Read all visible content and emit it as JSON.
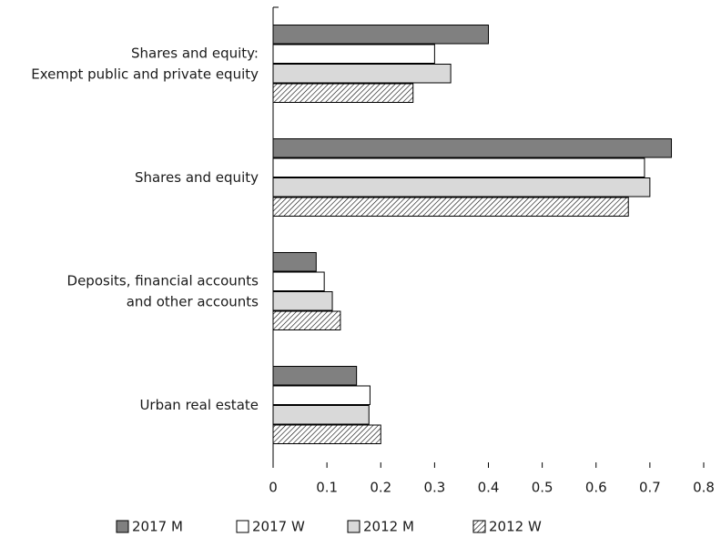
{
  "chart_data": {
    "type": "hbar",
    "categories": [
      [
        "Shares and equity:",
        "Exempt public and private equity"
      ],
      [
        "Shares and equity"
      ],
      [
        "Deposits, financial accounts",
        "and other accounts"
      ],
      [
        "Urban real estate"
      ]
    ],
    "series": [
      {
        "name": "2017 M",
        "color": "#808080",
        "pattern": "solid",
        "values": [
          0.4,
          0.74,
          0.08,
          0.155
        ]
      },
      {
        "name": "2017 W",
        "color": "#ffffff",
        "pattern": "solid",
        "values": [
          0.3,
          0.69,
          0.095,
          0.18
        ]
      },
      {
        "name": "2012 M",
        "color": "#d9d9d9",
        "pattern": "solid",
        "values": [
          0.33,
          0.7,
          0.11,
          0.178
        ]
      },
      {
        "name": "2012 W",
        "color": "#ffffff",
        "pattern": "hatch",
        "values": [
          0.26,
          0.66,
          0.125,
          0.2
        ]
      }
    ],
    "xlim": [
      0,
      0.8
    ],
    "xticks": [
      0,
      0.1,
      0.2,
      0.3,
      0.4,
      0.5,
      0.6,
      0.7,
      0.8
    ],
    "legend": "bottom"
  }
}
